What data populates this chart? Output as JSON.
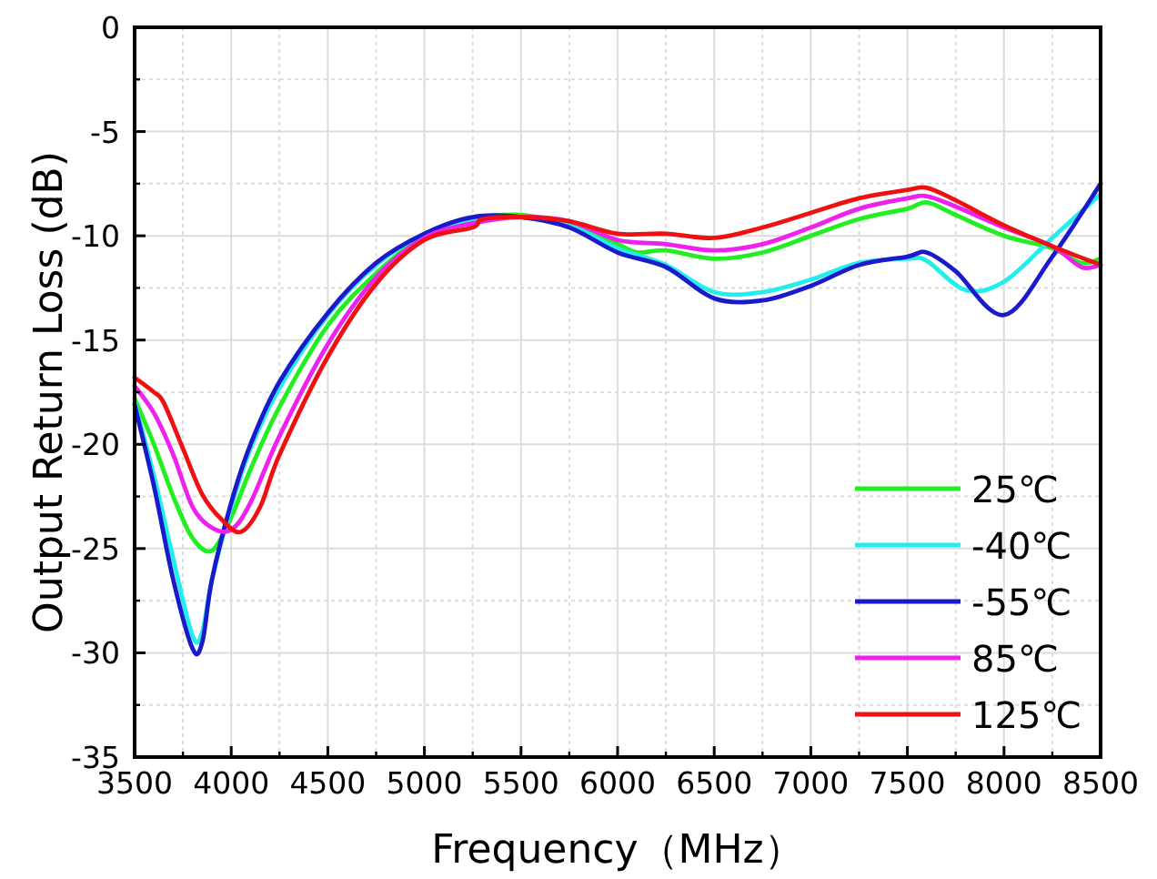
{
  "chart_data": {
    "type": "line",
    "xlabel": "Frequency（MHz）",
    "ylabel": "Output Return Loss (dB)",
    "xlim": [
      3500,
      8500
    ],
    "xticks": [
      3500,
      4000,
      4500,
      5000,
      5500,
      6000,
      6500,
      7000,
      7500,
      8000,
      8500
    ],
    "ylim": [
      -35,
      0
    ],
    "yticks": [
      -35,
      -30,
      -25,
      -20,
      -15,
      -10,
      -5,
      0
    ],
    "grid": true,
    "legend": "bottom right",
    "series": [
      {
        "name": "25℃",
        "color": "#22ee22",
        "x": [
          3500,
          3600,
          3700,
          3800,
          3900,
          4000,
          4100,
          4250,
          4500,
          4750,
          5000,
          5250,
          5500,
          5750,
          6000,
          6100,
          6250,
          6500,
          6750,
          7000,
          7250,
          7500,
          7600,
          7750,
          8000,
          8250,
          8400,
          8500
        ],
        "values": [
          -17.8,
          -20,
          -22.5,
          -24.5,
          -25.1,
          -23.5,
          -21.2,
          -18.2,
          -14.3,
          -11.8,
          -10.0,
          -9.2,
          -9.0,
          -9.5,
          -10.4,
          -10.8,
          -10.7,
          -11.1,
          -10.8,
          -10.0,
          -9.2,
          -8.7,
          -8.4,
          -9.0,
          -10.0,
          -10.6,
          -11.3,
          -11.1
        ]
      },
      {
        "name": "-40℃",
        "color": "#22eeee",
        "x": [
          3500,
          3600,
          3700,
          3800,
          3850,
          3900,
          4000,
          4100,
          4250,
          4500,
          4750,
          5000,
          5250,
          5500,
          5750,
          6000,
          6250,
          6500,
          6750,
          7000,
          7250,
          7500,
          7600,
          7800,
          8000,
          8250,
          8500
        ],
        "values": [
          -18,
          -21.5,
          -25.5,
          -29.2,
          -29,
          -26.5,
          -23,
          -20.2,
          -17.3,
          -13.8,
          -11.4,
          -9.9,
          -9.2,
          -9.1,
          -9.5,
          -10.6,
          -11.4,
          -12.7,
          -12.7,
          -12.1,
          -11.3,
          -11.1,
          -11.2,
          -12.6,
          -12.2,
          -10.1,
          -8.0
        ]
      },
      {
        "name": "-55℃",
        "color": "#1a1acc",
        "x": [
          3500,
          3600,
          3700,
          3800,
          3850,
          3900,
          4000,
          4100,
          4250,
          4500,
          4750,
          5000,
          5250,
          5500,
          5750,
          6000,
          6250,
          6500,
          6750,
          7000,
          7250,
          7500,
          7600,
          7750,
          8000,
          8250,
          8500
        ],
        "values": [
          -18.1,
          -22,
          -26.5,
          -29.8,
          -29.5,
          -26.5,
          -22.8,
          -20,
          -17,
          -13.7,
          -11.3,
          -9.9,
          -9.1,
          -9.1,
          -9.6,
          -10.8,
          -11.5,
          -13.0,
          -13.1,
          -12.4,
          -11.4,
          -11.0,
          -10.8,
          -11.7,
          -13.8,
          -11.0,
          -7.5
        ]
      },
      {
        "name": "85℃",
        "color": "#ee22ee",
        "x": [
          3500,
          3600,
          3700,
          3800,
          3900,
          4000,
          4100,
          4250,
          4500,
          4750,
          5000,
          5250,
          5500,
          5750,
          6000,
          6250,
          6500,
          6750,
          7000,
          7250,
          7500,
          7600,
          7750,
          8000,
          8250,
          8400,
          8500
        ],
        "values": [
          -17.2,
          -18.5,
          -20.5,
          -23,
          -24,
          -24.1,
          -22.8,
          -19.6,
          -15.2,
          -12,
          -10.1,
          -9.4,
          -9.1,
          -9.3,
          -10.2,
          -10.4,
          -10.7,
          -10.4,
          -9.6,
          -8.7,
          -8.2,
          -8.1,
          -8.6,
          -9.6,
          -10.5,
          -11.5,
          -11.4
        ]
      },
      {
        "name": "125℃",
        "color": "#ee1111",
        "x": [
          3500,
          3600,
          3650,
          3750,
          3850,
          3950,
          4050,
          4150,
          4250,
          4500,
          4750,
          5000,
          5250,
          5300,
          5500,
          5750,
          6000,
          6250,
          6500,
          6750,
          7000,
          7250,
          7500,
          7600,
          7750,
          8000,
          8250,
          8500
        ],
        "values": [
          -16.8,
          -17.5,
          -18,
          -20.2,
          -22.4,
          -23.6,
          -24.2,
          -23,
          -20.5,
          -15.8,
          -12.3,
          -10.2,
          -9.6,
          -9.2,
          -9.1,
          -9.3,
          -9.9,
          -9.9,
          -10.1,
          -9.6,
          -8.9,
          -8.2,
          -7.8,
          -7.7,
          -8.3,
          -9.5,
          -10.5,
          -11.4
        ]
      }
    ]
  }
}
